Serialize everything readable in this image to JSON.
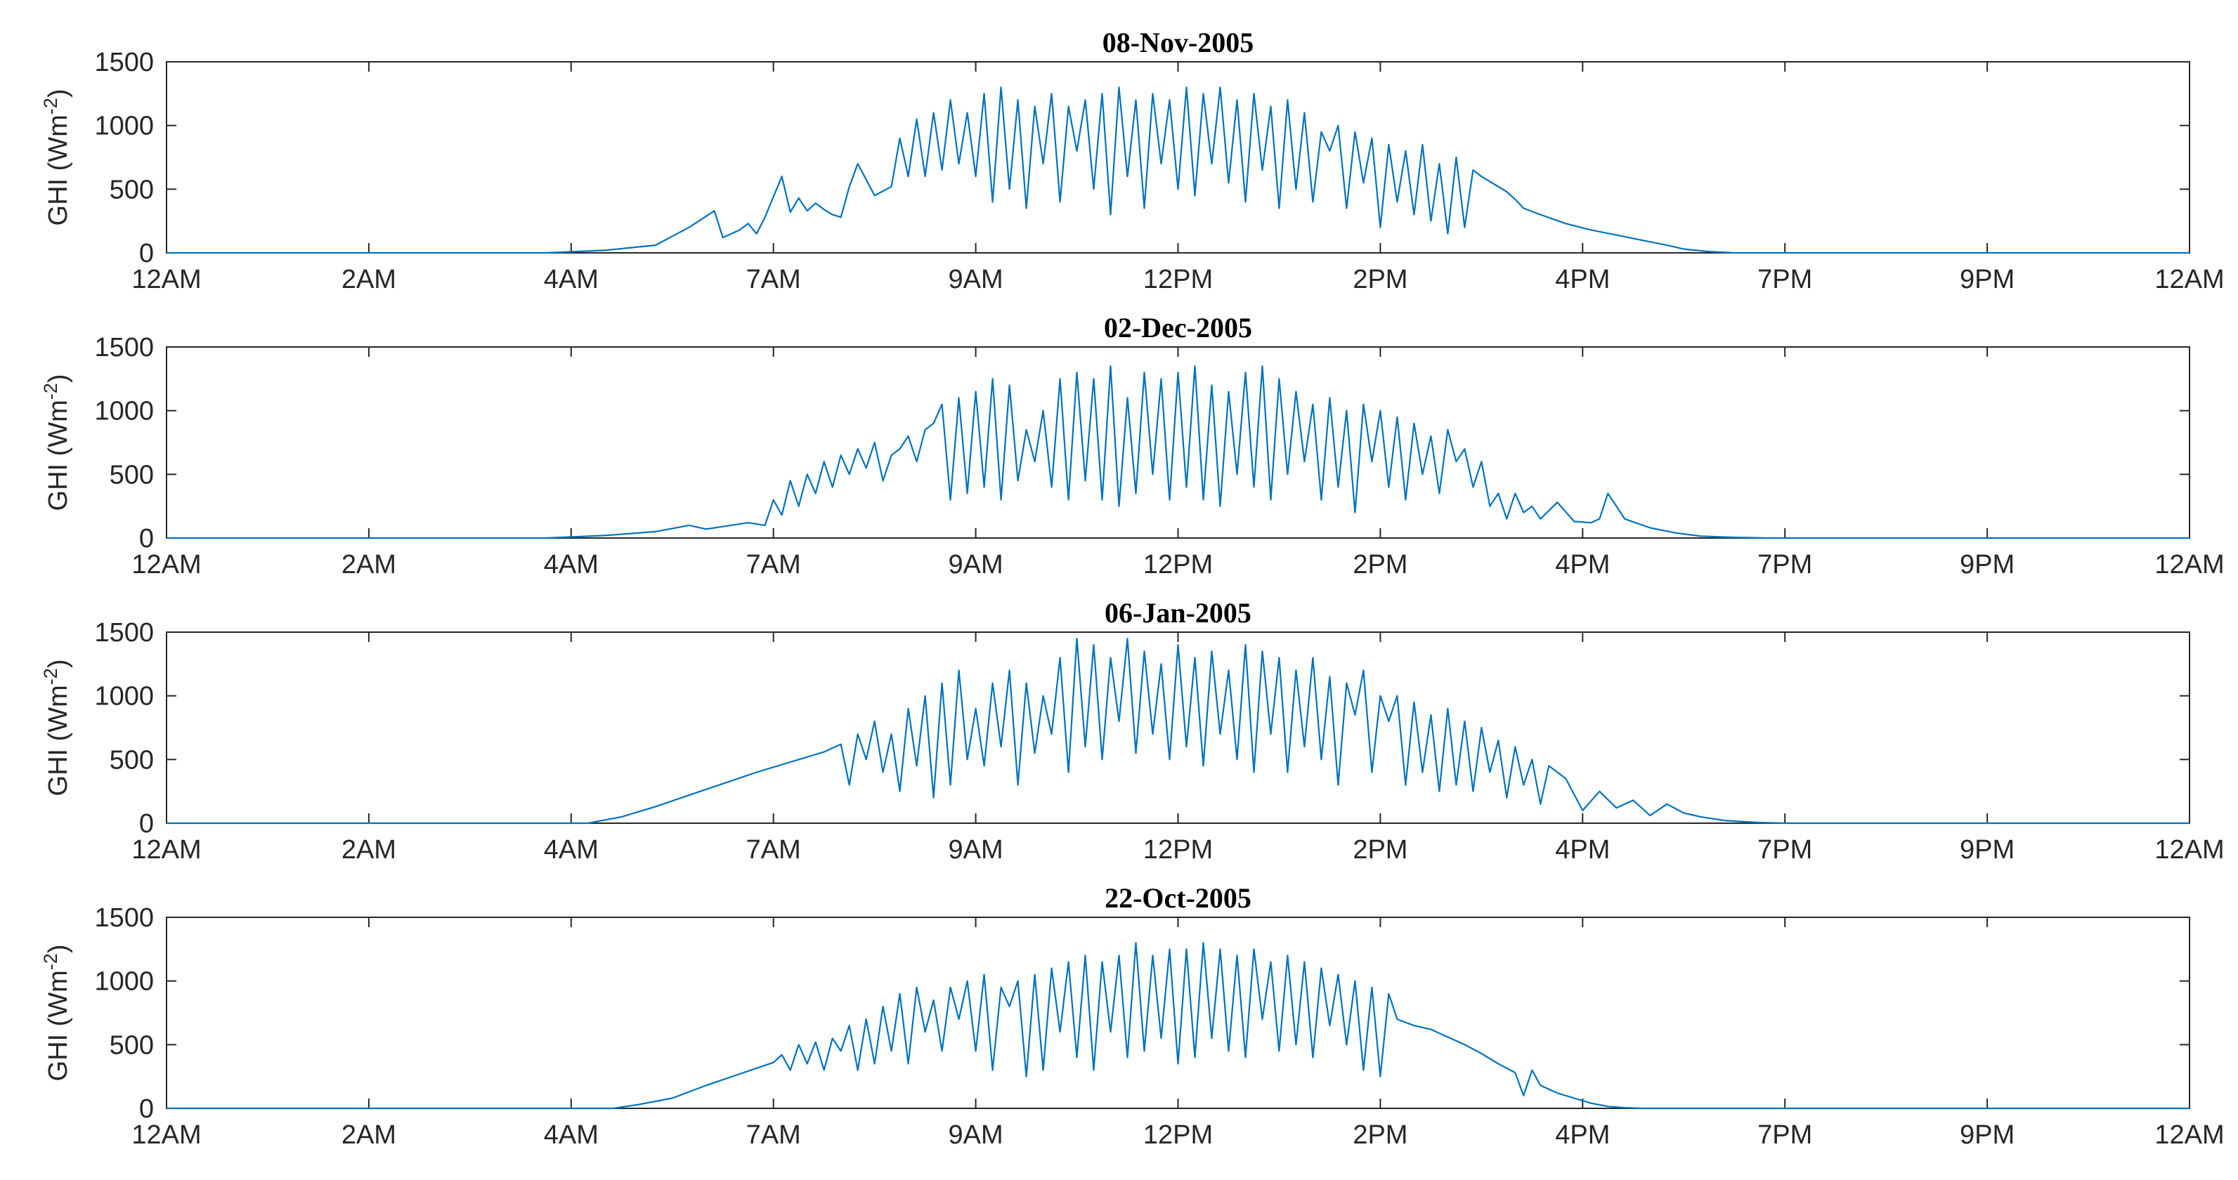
{
  "chart_data": [
    {
      "type": "line",
      "title": "08-Nov-2005",
      "ylabel_main": "GHI (Wm",
      "ylabel_sup": "-2",
      "ylabel_close": ")",
      "ylim": [
        0,
        1500
      ],
      "yticks": [
        "0",
        "500",
        "1000",
        "1500"
      ],
      "xlim": [
        0,
        24
      ],
      "xtick_labels": [
        "12AM",
        "2AM",
        "4AM",
        "7AM",
        "9AM",
        "12PM",
        "2PM",
        "4PM",
        "7PM",
        "9PM",
        "12AM"
      ],
      "series": [
        {
          "name": "GHI",
          "color": "#0072BD",
          "x": [
            0,
            4.5,
            5.2,
            5.8,
            6.2,
            6.5,
            6.6,
            6.8,
            6.9,
            7.0,
            7.1,
            7.3,
            7.4,
            7.5,
            7.6,
            7.7,
            7.8,
            7.9,
            8.0,
            8.1,
            8.2,
            8.4,
            8.6,
            8.7,
            8.8,
            8.9,
            9.0,
            9.1,
            9.2,
            9.3,
            9.4,
            9.5,
            9.6,
            9.7,
            9.8,
            9.9,
            10.0,
            10.1,
            10.2,
            10.3,
            10.4,
            10.5,
            10.6,
            10.7,
            10.8,
            10.9,
            11.0,
            11.1,
            11.2,
            11.3,
            11.4,
            11.5,
            11.6,
            11.7,
            11.8,
            11.9,
            12.0,
            12.1,
            12.2,
            12.3,
            12.4,
            12.5,
            12.6,
            12.7,
            12.8,
            12.9,
            13.0,
            13.1,
            13.2,
            13.3,
            13.4,
            13.5,
            13.6,
            13.7,
            13.8,
            13.9,
            14.0,
            14.1,
            14.2,
            14.3,
            14.4,
            14.5,
            14.6,
            14.7,
            14.8,
            14.9,
            15.0,
            15.1,
            15.2,
            15.3,
            15.4,
            15.5,
            15.6,
            15.7,
            15.8,
            15.9,
            16.0,
            16.1,
            16.3,
            16.6,
            16.9,
            17.2,
            17.5,
            17.8,
            18.0,
            18.3,
            18.6,
            18.8,
            19.0,
            24
          ],
          "values": [
            0,
            0,
            20,
            60,
            200,
            330,
            120,
            180,
            230,
            150,
            280,
            600,
            320,
            430,
            330,
            390,
            340,
            300,
            280,
            520,
            700,
            450,
            520,
            900,
            600,
            1050,
            600,
            1100,
            650,
            1200,
            700,
            1100,
            600,
            1250,
            400,
            1300,
            500,
            1200,
            350,
            1150,
            700,
            1250,
            400,
            1150,
            800,
            1200,
            500,
            1250,
            300,
            1300,
            600,
            1200,
            350,
            1250,
            700,
            1200,
            500,
            1300,
            450,
            1250,
            700,
            1300,
            550,
            1200,
            400,
            1250,
            650,
            1150,
            350,
            1200,
            500,
            1100,
            400,
            950,
            800,
            1000,
            350,
            950,
            550,
            900,
            200,
            850,
            400,
            800,
            300,
            850,
            250,
            700,
            150,
            750,
            200,
            650,
            600,
            560,
            520,
            480,
            420,
            350,
            300,
            230,
            180,
            140,
            100,
            60,
            30,
            10,
            0,
            0,
            0,
            0
          ]
        }
      ]
    },
    {
      "type": "line",
      "title": "02-Dec-2005",
      "ylabel_main": "GHI (Wm",
      "ylabel_sup": "-2",
      "ylabel_close": ")",
      "ylim": [
        0,
        1500
      ],
      "yticks": [
        "0",
        "500",
        "1000",
        "1500"
      ],
      "xlim": [
        0,
        24
      ],
      "xtick_labels": [
        "12AM",
        "2AM",
        "4AM",
        "7AM",
        "9AM",
        "12PM",
        "2PM",
        "4PM",
        "7PM",
        "9PM",
        "12AM"
      ],
      "series": [
        {
          "name": "GHI",
          "color": "#0072BD",
          "x": [
            0,
            4.5,
            5.2,
            5.8,
            6.2,
            6.4,
            6.6,
            6.9,
            7.1,
            7.2,
            7.3,
            7.4,
            7.5,
            7.6,
            7.7,
            7.8,
            7.9,
            8.0,
            8.1,
            8.2,
            8.3,
            8.4,
            8.5,
            8.6,
            8.7,
            8.8,
            8.9,
            9.0,
            9.1,
            9.2,
            9.3,
            9.4,
            9.5,
            9.6,
            9.7,
            9.8,
            9.9,
            10.0,
            10.1,
            10.2,
            10.3,
            10.4,
            10.5,
            10.6,
            10.7,
            10.8,
            10.9,
            11.0,
            11.1,
            11.2,
            11.3,
            11.4,
            11.5,
            11.6,
            11.7,
            11.8,
            11.9,
            12.0,
            12.1,
            12.2,
            12.3,
            12.4,
            12.5,
            12.6,
            12.7,
            12.8,
            12.9,
            13.0,
            13.1,
            13.2,
            13.3,
            13.4,
            13.5,
            13.6,
            13.7,
            13.8,
            13.9,
            14.0,
            14.1,
            14.2,
            14.3,
            14.4,
            14.5,
            14.6,
            14.7,
            14.8,
            14.9,
            15.0,
            15.1,
            15.2,
            15.3,
            15.4,
            15.5,
            15.6,
            15.7,
            15.8,
            15.9,
            16.0,
            16.1,
            16.2,
            16.3,
            16.5,
            16.7,
            16.9,
            17.0,
            17.1,
            17.3,
            17.6,
            17.9,
            18.2,
            18.6,
            19.0,
            24
          ],
          "values": [
            0,
            0,
            20,
            50,
            100,
            70,
            90,
            120,
            100,
            300,
            180,
            450,
            250,
            500,
            350,
            600,
            400,
            650,
            500,
            700,
            550,
            750,
            450,
            650,
            700,
            800,
            600,
            850,
            900,
            1050,
            300,
            1100,
            350,
            1150,
            400,
            1250,
            300,
            1200,
            450,
            850,
            600,
            1000,
            400,
            1250,
            300,
            1300,
            450,
            1250,
            300,
            1350,
            250,
            1100,
            350,
            1300,
            500,
            1250,
            300,
            1300,
            400,
            1350,
            300,
            1200,
            250,
            1150,
            500,
            1300,
            400,
            1350,
            300,
            1250,
            500,
            1150,
            600,
            1050,
            300,
            1100,
            400,
            1000,
            200,
            1050,
            600,
            1000,
            400,
            950,
            300,
            900,
            500,
            800,
            350,
            850,
            600,
            700,
            400,
            600,
            250,
            350,
            150,
            350,
            200,
            250,
            150,
            280,
            130,
            120,
            150,
            350,
            150,
            80,
            40,
            15,
            5,
            0,
            0
          ]
        }
      ]
    },
    {
      "type": "line",
      "title": "06-Jan-2005",
      "ylabel_main": "GHI (Wm",
      "ylabel_sup": "-2",
      "ylabel_close": ")",
      "ylim": [
        0,
        1500
      ],
      "yticks": [
        "0",
        "500",
        "1000",
        "1500"
      ],
      "xlim": [
        0,
        24
      ],
      "xtick_labels": [
        "12AM",
        "2AM",
        "4AM",
        "7AM",
        "9AM",
        "12PM",
        "2PM",
        "4PM",
        "7PM",
        "9PM",
        "12AM"
      ],
      "series": [
        {
          "name": "GHI",
          "color": "#0072BD",
          "x": [
            0,
            5.0,
            5.4,
            5.8,
            6.2,
            6.6,
            7.0,
            7.4,
            7.8,
            8.0,
            8.1,
            8.2,
            8.3,
            8.4,
            8.5,
            8.6,
            8.7,
            8.8,
            8.9,
            9.0,
            9.1,
            9.2,
            9.3,
            9.4,
            9.5,
            9.6,
            9.7,
            9.8,
            9.9,
            10.0,
            10.1,
            10.2,
            10.3,
            10.4,
            10.5,
            10.6,
            10.7,
            10.8,
            10.9,
            11.0,
            11.1,
            11.2,
            11.3,
            11.4,
            11.5,
            11.6,
            11.7,
            11.8,
            11.9,
            12.0,
            12.1,
            12.2,
            12.3,
            12.4,
            12.5,
            12.6,
            12.7,
            12.8,
            12.9,
            13.0,
            13.1,
            13.2,
            13.3,
            13.4,
            13.5,
            13.6,
            13.7,
            13.8,
            13.9,
            14.0,
            14.1,
            14.2,
            14.3,
            14.4,
            14.5,
            14.6,
            14.7,
            14.8,
            14.9,
            15.0,
            15.1,
            15.2,
            15.3,
            15.4,
            15.5,
            15.6,
            15.7,
            15.8,
            15.9,
            16.0,
            16.1,
            16.2,
            16.3,
            16.4,
            16.6,
            16.8,
            17.0,
            17.2,
            17.4,
            17.6,
            17.8,
            18.0,
            18.2,
            18.5,
            18.9,
            19.2,
            24
          ],
          "values": [
            0,
            0,
            50,
            130,
            220,
            310,
            400,
            480,
            560,
            620,
            300,
            700,
            500,
            800,
            400,
            700,
            250,
            900,
            450,
            1000,
            200,
            1100,
            300,
            1200,
            500,
            900,
            450,
            1100,
            600,
            1200,
            300,
            1100,
            550,
            1000,
            700,
            1300,
            400,
            1450,
            600,
            1400,
            500,
            1300,
            800,
            1450,
            550,
            1350,
            700,
            1250,
            500,
            1400,
            600,
            1300,
            450,
            1350,
            700,
            1200,
            500,
            1400,
            400,
            1350,
            700,
            1300,
            400,
            1200,
            600,
            1300,
            500,
            1150,
            300,
            1100,
            850,
            1200,
            400,
            1000,
            800,
            1000,
            300,
            950,
            400,
            850,
            250,
            900,
            300,
            800,
            250,
            750,
            400,
            650,
            200,
            600,
            300,
            500,
            150,
            450,
            350,
            100,
            250,
            120,
            180,
            60,
            150,
            80,
            50,
            20,
            5,
            0,
            0
          ]
        }
      ]
    },
    {
      "type": "line",
      "title": "22-Oct-2005",
      "ylabel_main": "GHI (Wm",
      "ylabel_sup": "-2",
      "ylabel_close": ")",
      "ylim": [
        0,
        1500
      ],
      "yticks": [
        "0",
        "500",
        "1000",
        "1500"
      ],
      "xlim": [
        0,
        24
      ],
      "xtick_labels": [
        "12AM",
        "2AM",
        "4AM",
        "7AM",
        "9AM",
        "12PM",
        "2PM",
        "4PM",
        "7PM",
        "9PM",
        "12AM"
      ],
      "series": [
        {
          "name": "GHI",
          "color": "#0072BD",
          "x": [
            0,
            5.3,
            5.6,
            6.0,
            6.4,
            6.8,
            7.2,
            7.3,
            7.4,
            7.5,
            7.6,
            7.7,
            7.8,
            7.9,
            8.0,
            8.1,
            8.2,
            8.3,
            8.4,
            8.5,
            8.6,
            8.7,
            8.8,
            8.9,
            9.0,
            9.1,
            9.2,
            9.3,
            9.4,
            9.5,
            9.6,
            9.7,
            9.8,
            9.9,
            10.0,
            10.1,
            10.2,
            10.3,
            10.4,
            10.5,
            10.6,
            10.7,
            10.8,
            10.9,
            11.0,
            11.1,
            11.2,
            11.3,
            11.4,
            11.5,
            11.6,
            11.7,
            11.8,
            11.9,
            12.0,
            12.1,
            12.2,
            12.3,
            12.4,
            12.5,
            12.6,
            12.7,
            12.8,
            12.9,
            13.0,
            13.1,
            13.2,
            13.3,
            13.4,
            13.5,
            13.6,
            13.7,
            13.8,
            13.9,
            14.0,
            14.1,
            14.2,
            14.3,
            14.4,
            14.5,
            14.6,
            14.8,
            15.0,
            15.2,
            15.4,
            15.6,
            15.8,
            16.0,
            16.1,
            16.2,
            16.3,
            16.4,
            16.5,
            16.7,
            16.9,
            17.1,
            17.3,
            17.5,
            17.8,
            18.2,
            18.6,
            24
          ],
          "values": [
            0,
            0,
            30,
            80,
            180,
            270,
            360,
            420,
            300,
            500,
            350,
            520,
            300,
            550,
            450,
            650,
            300,
            700,
            350,
            800,
            450,
            900,
            350,
            950,
            600,
            850,
            450,
            950,
            700,
            1000,
            450,
            1050,
            300,
            950,
            800,
            1000,
            250,
            1050,
            300,
            1100,
            600,
            1150,
            400,
            1200,
            300,
            1150,
            600,
            1200,
            400,
            1300,
            450,
            1200,
            550,
            1250,
            350,
            1250,
            400,
            1300,
            550,
            1250,
            450,
            1200,
            400,
            1250,
            700,
            1150,
            450,
            1200,
            500,
            1150,
            400,
            1100,
            650,
            1050,
            500,
            1000,
            300,
            950,
            250,
            900,
            700,
            650,
            620,
            560,
            500,
            430,
            350,
            280,
            100,
            300,
            180,
            150,
            120,
            80,
            40,
            15,
            5,
            0,
            0,
            0,
            0,
            0
          ]
        }
      ]
    }
  ]
}
